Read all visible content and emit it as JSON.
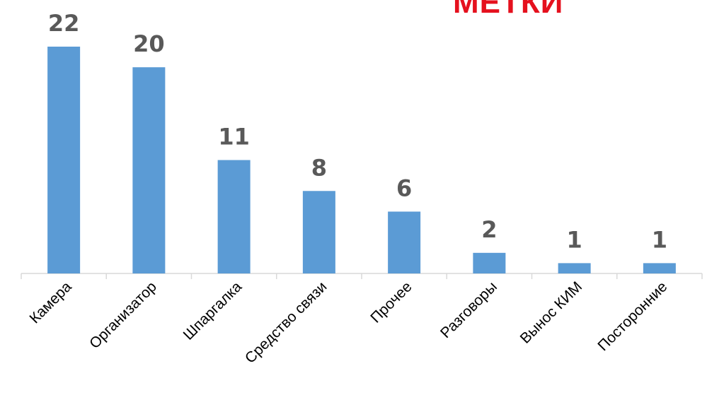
{
  "chart_data": {
    "type": "bar",
    "title": "МЕТКИ",
    "categories": [
      "Камера",
      "Организатор",
      "Шпаргалка",
      "Средство связи",
      "Прочее",
      "Разговоры",
      "Вынос КИМ",
      "Посторонние"
    ],
    "values": [
      22,
      20,
      11,
      8,
      6,
      2,
      1,
      1
    ],
    "ylim": [
      0,
      22
    ],
    "grid": false,
    "legend": "none",
    "data_labels": true,
    "bar_color": "#5b9bd5",
    "title_color": "#e5111e",
    "label_color": "#595959"
  }
}
